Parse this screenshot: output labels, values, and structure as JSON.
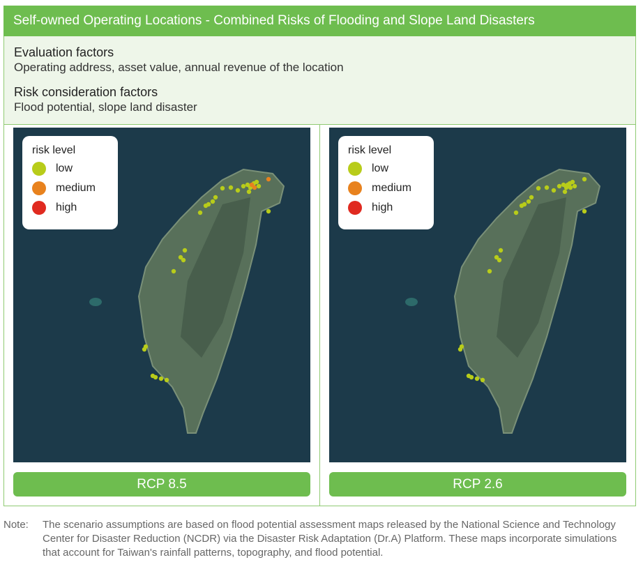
{
  "header": {
    "title": "Self-owned Operating Locations - Combined Risks of Flooding and Slope Land Disasters"
  },
  "factors": [
    {
      "heading": "Evaluation factors",
      "text": "Operating address, asset value, annual revenue of the location"
    },
    {
      "heading": "Risk consideration factors",
      "text": "Flood potential, slope land disaster"
    }
  ],
  "legend": {
    "title": "risk level",
    "items": [
      "low",
      "medium",
      "high"
    ]
  },
  "maps": [
    {
      "caption": "RCP 8.5"
    },
    {
      "caption": "RCP 2.6"
    }
  ],
  "note": {
    "label": "Note:",
    "text": "The scenario assumptions are based on flood potential assessment maps released by the National Science and Technology Center for Disaster Reduction (NCDR) via the Disaster Risk Adaptation (Dr.A) Platform. These maps incorporate simulations that account for Taiwan's rainfall patterns, topography, and flood potential."
  }
}
